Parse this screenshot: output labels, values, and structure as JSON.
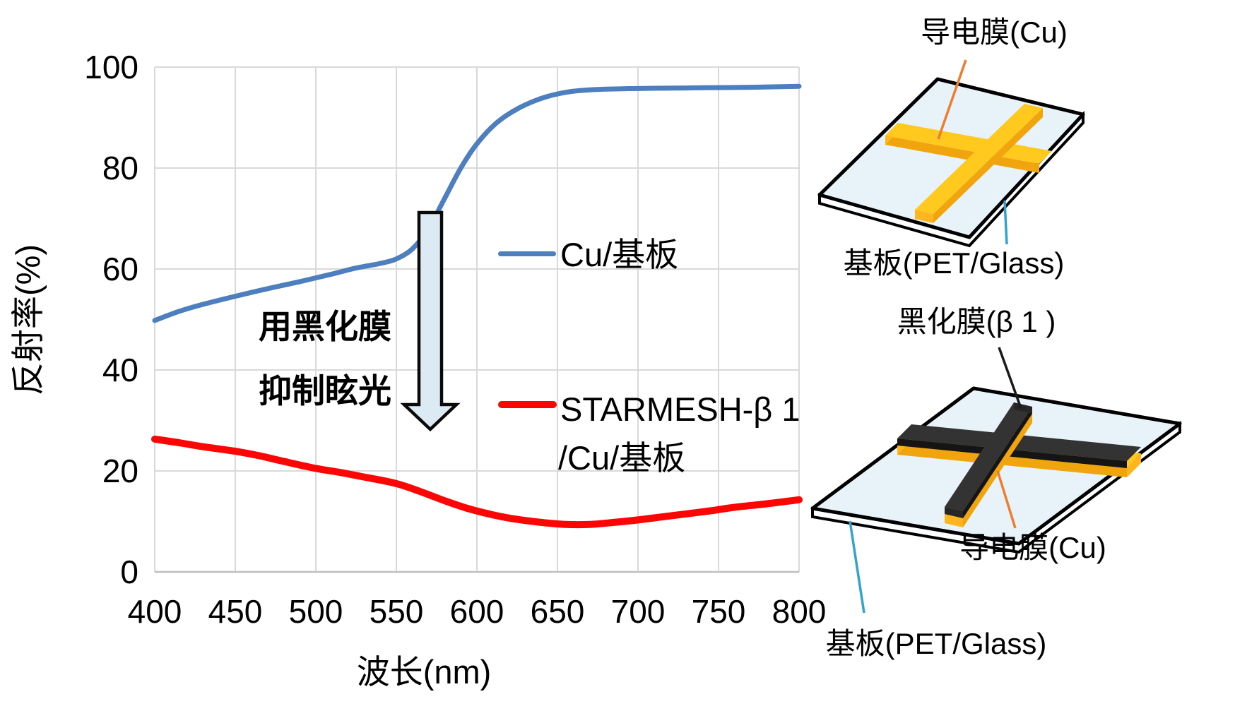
{
  "figure": {
    "chart": {
      "y_axis_title": "反射率(%)",
      "x_axis_title": "波长(nm)",
      "annotation_line1": "用黑化膜",
      "annotation_line2": "抑制眩光",
      "legend": [
        {
          "label": "Cu/基板",
          "color": "#4d7ebe"
        },
        {
          "label_line1": "STARMESH-β 1",
          "label_line2": "/Cu/基板",
          "color": "#fb0505"
        }
      ]
    },
    "diagram_top": {
      "label_conductive_film": "导电膜(Cu)",
      "label_substrate": "基板(PET/Glass)"
    },
    "diagram_bottom": {
      "label_blackening_film": "黑化膜(β 1 )",
      "label_conductive_film": "导电膜(Cu)",
      "label_substrate": "基板(PET/Glass)"
    }
  },
  "chart_data": {
    "type": "line",
    "title": "",
    "xlabel": "波长(nm)",
    "ylabel": "反射率(%)",
    "xlim": [
      400,
      800
    ],
    "ylim": [
      0,
      100
    ],
    "x_ticks": [
      400,
      450,
      500,
      550,
      600,
      650,
      700,
      750,
      800
    ],
    "y_ticks": [
      0,
      20,
      40,
      60,
      80,
      100
    ],
    "grid": true,
    "legend_position": "inside-right",
    "annotation": "用黑化膜抑制眩光",
    "series": [
      {
        "name": "Cu/基板",
        "color": "#4d7ebe",
        "points": [
          [
            400,
            49.8
          ],
          [
            415,
            51.6
          ],
          [
            430,
            53.0
          ],
          [
            450,
            54.6
          ],
          [
            470,
            56.1
          ],
          [
            490,
            57.5
          ],
          [
            510,
            59.0
          ],
          [
            525,
            60.2
          ],
          [
            540,
            61.1
          ],
          [
            550,
            62.0
          ],
          [
            560,
            64.0
          ],
          [
            570,
            68.0
          ],
          [
            580,
            74.0
          ],
          [
            590,
            80.0
          ],
          [
            600,
            84.8
          ],
          [
            612,
            88.9
          ],
          [
            625,
            91.7
          ],
          [
            640,
            93.8
          ],
          [
            655,
            95.0
          ],
          [
            670,
            95.5
          ],
          [
            690,
            95.7
          ],
          [
            710,
            95.8
          ],
          [
            740,
            95.9
          ],
          [
            770,
            96.0
          ],
          [
            800,
            96.2
          ]
        ]
      },
      {
        "name": "STARMESH-β 1/Cu/基板",
        "color": "#fb0505",
        "points": [
          [
            400,
            26.3
          ],
          [
            415,
            25.6
          ],
          [
            430,
            24.8
          ],
          [
            450,
            23.9
          ],
          [
            465,
            23.0
          ],
          [
            480,
            21.9
          ],
          [
            500,
            20.5
          ],
          [
            515,
            19.7
          ],
          [
            530,
            18.8
          ],
          [
            550,
            17.5
          ],
          [
            565,
            15.9
          ],
          [
            580,
            14.1
          ],
          [
            595,
            12.5
          ],
          [
            610,
            11.3
          ],
          [
            625,
            10.4
          ],
          [
            640,
            9.8
          ],
          [
            655,
            9.4
          ],
          [
            670,
            9.4
          ],
          [
            685,
            9.8
          ],
          [
            700,
            10.3
          ],
          [
            715,
            10.9
          ],
          [
            730,
            11.5
          ],
          [
            745,
            12.1
          ],
          [
            760,
            12.8
          ],
          [
            780,
            13.5
          ],
          [
            800,
            14.3
          ]
        ]
      }
    ]
  },
  "colors": {
    "grid": "#d9d9d9",
    "axis": "#bfbfbf",
    "arrow_fill": "#dcebf3",
    "arrow_stroke": "#0a0a0a",
    "plate_fill": "#e7f2f9",
    "plate_side_fill": "#fbfdfe",
    "copper_yellow": "#ffc91e",
    "copper_yellow_dark": "#f0a50e",
    "copper_yellow_cap": "#ffb61e",
    "blackening_top": "#333333",
    "blackening_side": "#151515",
    "leader_orange": "#ed7d31",
    "leader_teal": "#35a3c8",
    "leader_black": "#1a1a1a"
  }
}
